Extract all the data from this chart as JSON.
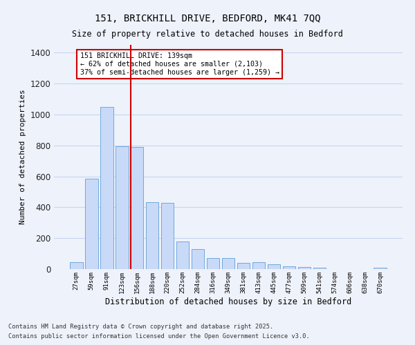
{
  "title1": "151, BRICKHILL DRIVE, BEDFORD, MK41 7QQ",
  "title2": "Size of property relative to detached houses in Bedford",
  "xlabel": "Distribution of detached houses by size in Bedford",
  "ylabel": "Number of detached properties",
  "categories": [
    "27sqm",
    "59sqm",
    "91sqm",
    "123sqm",
    "156sqm",
    "188sqm",
    "220sqm",
    "252sqm",
    "284sqm",
    "316sqm",
    "349sqm",
    "381sqm",
    "413sqm",
    "445sqm",
    "477sqm",
    "509sqm",
    "541sqm",
    "574sqm",
    "606sqm",
    "638sqm",
    "670sqm"
  ],
  "values": [
    45,
    585,
    1050,
    795,
    790,
    435,
    430,
    180,
    130,
    70,
    70,
    40,
    45,
    30,
    20,
    15,
    8,
    0,
    0,
    0,
    10
  ],
  "bar_color": "#c9daf8",
  "bar_edge_color": "#6fa8dc",
  "grid_color": "#c8d4f0",
  "background_color": "#eef2fb",
  "vline_color": "#cc0000",
  "vline_x_index": 3.57,
  "annotation_text": "151 BRICKHILL DRIVE: 139sqm\n← 62% of detached houses are smaller (2,103)\n37% of semi-detached houses are larger (1,259) →",
  "annotation_box_color": "#ffffff",
  "annotation_box_edge": "#cc0000",
  "ylim": [
    0,
    1450
  ],
  "yticks": [
    0,
    200,
    400,
    600,
    800,
    1000,
    1200,
    1400
  ],
  "footer1": "Contains HM Land Registry data © Crown copyright and database right 2025.",
  "footer2": "Contains public sector information licensed under the Open Government Licence v3.0."
}
